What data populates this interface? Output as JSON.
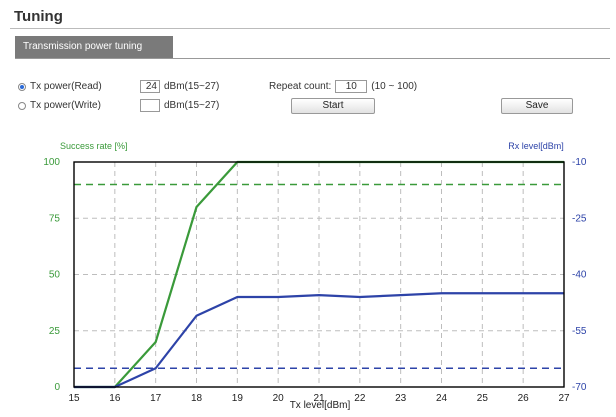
{
  "header": {
    "title": "Tuning"
  },
  "tabs": [
    {
      "label": "Transmission power tuning"
    }
  ],
  "controls": {
    "tx_read": {
      "label": "Tx power(Read)",
      "value": "24",
      "unit": "dBm(15~27)",
      "selected": true
    },
    "tx_write": {
      "label": "Tx power(Write)",
      "value": "",
      "unit": "dBm(15~27)",
      "selected": false
    },
    "repeat": {
      "label": "Repeat count:",
      "value": "10",
      "range": "(10 ~ 100)"
    },
    "start_label": "Start",
    "save_label": "Save"
  },
  "chart_data": {
    "type": "line",
    "left_axis_label": "Success rate [%]",
    "right_axis_label": "Rx level[dBm]",
    "xlabel": "Tx level[dBm]",
    "x": [
      15,
      16,
      17,
      18,
      19,
      20,
      21,
      22,
      23,
      24,
      25,
      26,
      27
    ],
    "xlim": [
      15,
      27
    ],
    "left_ylim": [
      0,
      100
    ],
    "left_ticks": [
      0,
      25,
      50,
      75,
      100
    ],
    "right_ylim": [
      -70,
      -10
    ],
    "right_ticks": [
      -10,
      -25,
      -40,
      -55,
      -70
    ],
    "series": [
      {
        "axis": "left",
        "color": "#3a9a3a",
        "values": [
          0,
          0,
          20,
          80,
          100,
          100,
          100,
          100,
          100,
          100,
          100,
          100,
          100
        ]
      },
      {
        "axis": "right",
        "color": "#2d43a8",
        "values": [
          -70,
          -70,
          -65,
          -51,
          -46,
          -46,
          -45.5,
          -46,
          -45.5,
          -45,
          -45,
          -45,
          -45
        ]
      }
    ],
    "thresholds": [
      {
        "axis": "left",
        "value": 90,
        "color": "#3a9a3a"
      },
      {
        "axis": "right",
        "value": -65,
        "color": "#2d43a8"
      }
    ],
    "colors": {
      "left_axis": "#3a9a3a",
      "right_axis": "#2d43a8"
    },
    "grid": true
  }
}
